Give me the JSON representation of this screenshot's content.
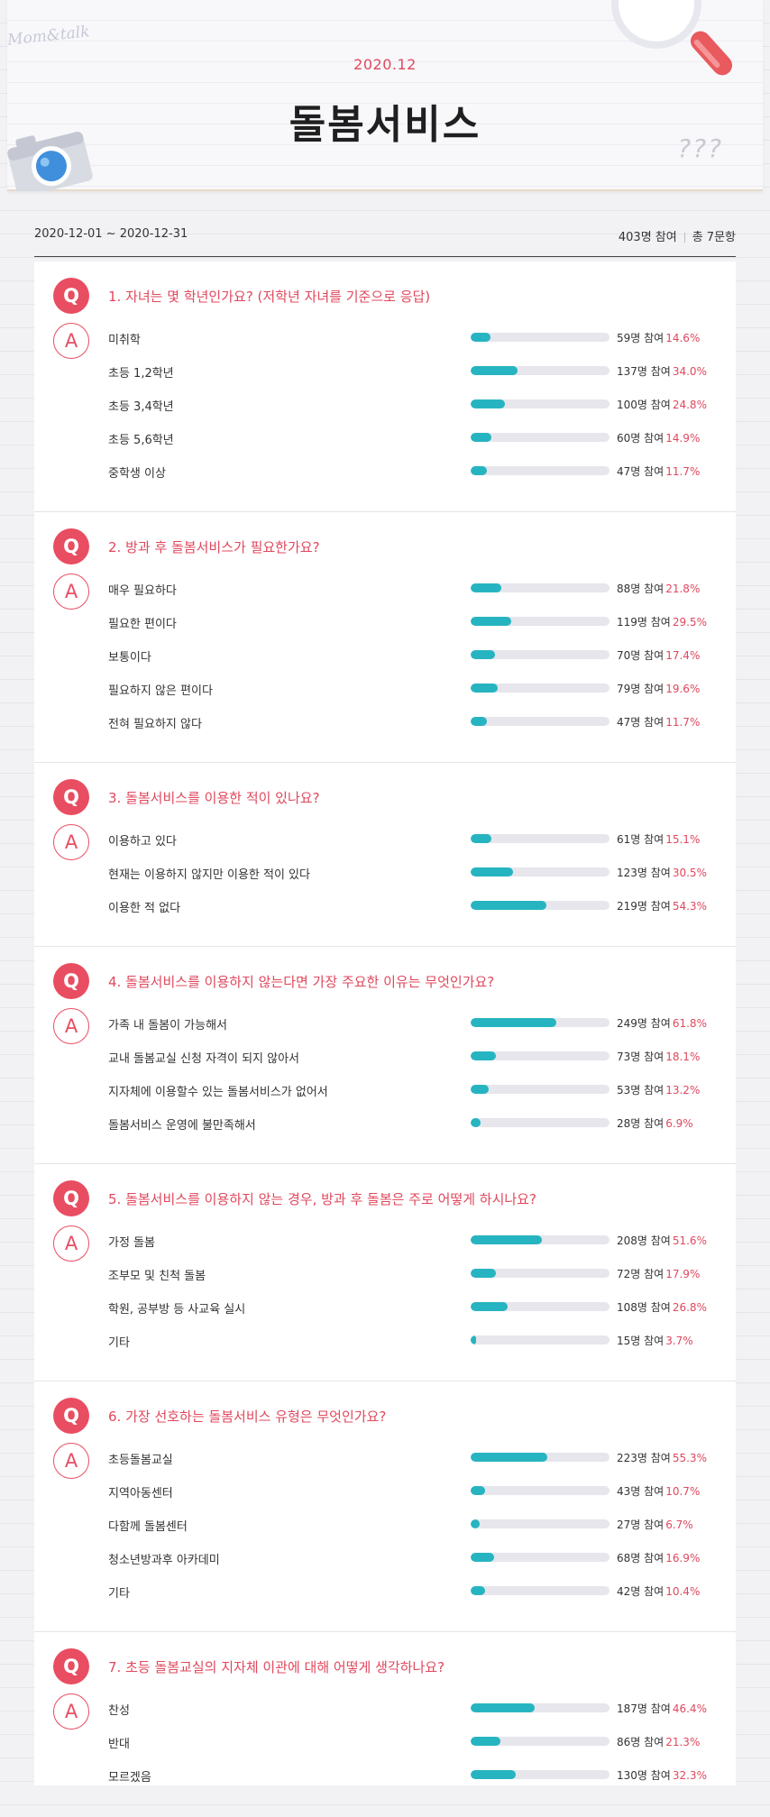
{
  "header": {
    "date": "2020.12",
    "title": "돌봄서비스",
    "hand_note": "Mom&talk",
    "question_marks": "???"
  },
  "summary": {
    "period": "2020-12-01 ~ 2020-12-31",
    "participants": "403명 참여",
    "total_questions": "총 7문항"
  },
  "labels": {
    "q_badge": "Q",
    "a_badge": "A"
  },
  "colors": {
    "accent": "#e94d62",
    "bar": "#27b4c1",
    "track": "#e6e6ec"
  },
  "questions": [
    {
      "text": "1.  자녀는 몇 학년인가요? (저학년 자녀를 기준으로 응답)",
      "answers": [
        {
          "label": "미취학",
          "count": "59명 참여",
          "pct": "14.6%",
          "value": 14.6
        },
        {
          "label": "초등 1,2학년",
          "count": "137명 참여",
          "pct": "34.0%",
          "value": 34.0
        },
        {
          "label": "초등 3,4학년",
          "count": "100명 참여",
          "pct": "24.8%",
          "value": 24.8
        },
        {
          "label": "초등 5,6학년",
          "count": "60명 참여",
          "pct": "14.9%",
          "value": 14.9
        },
        {
          "label": "중학생 이상",
          "count": "47명 참여",
          "pct": "11.7%",
          "value": 11.7
        }
      ]
    },
    {
      "text": "2.  방과 후 돌봄서비스가 필요한가요?",
      "answers": [
        {
          "label": "매우 필요하다",
          "count": "88명 참여",
          "pct": "21.8%",
          "value": 21.8
        },
        {
          "label": "필요한 편이다",
          "count": "119명 참여",
          "pct": "29.5%",
          "value": 29.5
        },
        {
          "label": "보통이다",
          "count": "70명 참여",
          "pct": "17.4%",
          "value": 17.4
        },
        {
          "label": "필요하지 않은 편이다",
          "count": "79명 참여",
          "pct": "19.6%",
          "value": 19.6
        },
        {
          "label": "전혀 필요하지 않다",
          "count": "47명 참여",
          "pct": "11.7%",
          "value": 11.7
        }
      ]
    },
    {
      "text": "3.  돌봄서비스를 이용한 적이 있나요?",
      "answers": [
        {
          "label": "이용하고 있다",
          "count": "61명 참여",
          "pct": "15.1%",
          "value": 15.1
        },
        {
          "label": "현재는 이용하지 않지만 이용한 적이 있다",
          "count": "123명 참여",
          "pct": "30.5%",
          "value": 30.5
        },
        {
          "label": "이용한 적 없다",
          "count": "219명 참여",
          "pct": "54.3%",
          "value": 54.3
        }
      ]
    },
    {
      "text": "4.  돌봄서비스를 이용하지 않는다면 가장 주요한 이유는 무엇인가요?",
      "answers": [
        {
          "label": "가족 내 돌봄이 가능해서",
          "count": "249명 참여",
          "pct": "61.8%",
          "value": 61.8
        },
        {
          "label": "교내 돌봄교실 신청 자격이 되지 않아서",
          "count": "73명 참여",
          "pct": "18.1%",
          "value": 18.1
        },
        {
          "label": "지자체에 이용할수 있는 돌봄서비스가 없어서",
          "count": "53명 참여",
          "pct": "13.2%",
          "value": 13.2
        },
        {
          "label": "돌봄서비스 운영에 불만족해서",
          "count": "28명 참여",
          "pct": "6.9%",
          "value": 6.9
        }
      ]
    },
    {
      "text": "5.  돌봄서비스를 이용하지 않는 경우, 방과 후 돌봄은 주로 어떻게 하시나요?",
      "answers": [
        {
          "label": "가정 돌봄",
          "count": "208명 참여",
          "pct": "51.6%",
          "value": 51.6
        },
        {
          "label": "조부모 및 친척 돌봄",
          "count": "72명 참여",
          "pct": "17.9%",
          "value": 17.9
        },
        {
          "label": "학원, 공부방 등 사교육 실시",
          "count": "108명 참여",
          "pct": "26.8%",
          "value": 26.8
        },
        {
          "label": "기타",
          "count": "15명 참여",
          "pct": "3.7%",
          "value": 3.7
        }
      ]
    },
    {
      "text": "6.  가장 선호하는 돌봄서비스 유형은 무엇인가요?",
      "answers": [
        {
          "label": "초등돌봄교실",
          "count": "223명 참여",
          "pct": "55.3%",
          "value": 55.3
        },
        {
          "label": "지역아동센터",
          "count": "43명 참여",
          "pct": "10.7%",
          "value": 10.7
        },
        {
          "label": "다함께 돌봄센터",
          "count": "27명 참여",
          "pct": "6.7%",
          "value": 6.7
        },
        {
          "label": "청소년방과후 아카데미",
          "count": "68명 참여",
          "pct": "16.9%",
          "value": 16.9
        },
        {
          "label": "기타",
          "count": "42명 참여",
          "pct": "10.4%",
          "value": 10.4
        }
      ]
    },
    {
      "text": "7.  초등 돌봄교실의 지자체 이관에 대해 어떻게 생각하나요?",
      "answers": [
        {
          "label": "찬성",
          "count": "187명 참여",
          "pct": "46.4%",
          "value": 46.4
        },
        {
          "label": "반대",
          "count": "86명 참여",
          "pct": "21.3%",
          "value": 21.3
        },
        {
          "label": "모르겠음",
          "count": "130명 참여",
          "pct": "32.3%",
          "value": 32.3
        }
      ]
    }
  ]
}
